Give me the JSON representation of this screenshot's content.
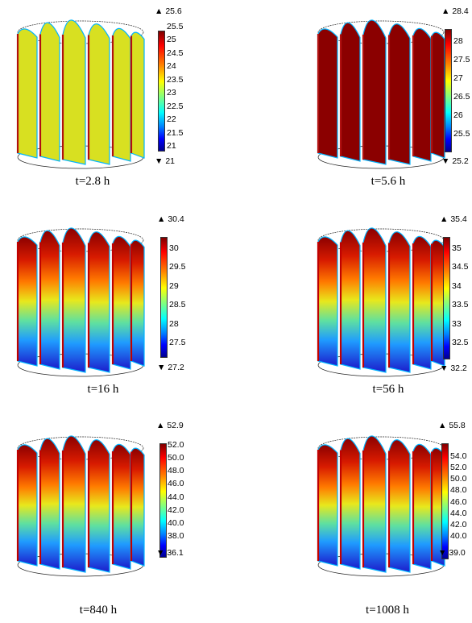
{
  "panels": [
    {
      "caption": "t=2.8 h",
      "max": "25.6",
      "min": "21",
      "ticks": [
        "25.5",
        "25",
        "24.5",
        "24",
        "23.5",
        "23",
        "22.5",
        "22",
        "21.5",
        "21"
      ],
      "fill": "#d8e021"
    },
    {
      "caption": "t=5.6 h",
      "max": "28.4",
      "min": "25.2",
      "ticks": [
        "28",
        "27.5",
        "27",
        "26.5",
        "26",
        "25.5"
      ],
      "fill": "#8b0000"
    },
    {
      "caption": "t=16 h",
      "max": "30.4",
      "min": "27.2",
      "ticks": [
        "30",
        "29.5",
        "29",
        "28.5",
        "28",
        "27.5"
      ],
      "fill": "gradient"
    },
    {
      "caption": "t=56 h",
      "max": "35.4",
      "min": "32.2",
      "ticks": [
        "35",
        "34.5",
        "34",
        "33.5",
        "33",
        "32.5"
      ],
      "fill": "gradient"
    },
    {
      "caption": "t=840 h",
      "max": "52.9",
      "min": "36.1",
      "ticks": [
        "52.0",
        "50.0",
        "48.0",
        "46.0",
        "44.0",
        "42.0",
        "40.0",
        "38.0"
      ],
      "fill": "gradient"
    },
    {
      "caption": "t=1008 h",
      "max": "55.8",
      "min": "39.0",
      "ticks": [
        "54.0",
        "52.0",
        "50.0",
        "48.0",
        "46.0",
        "44.0",
        "42.0",
        "40.0"
      ],
      "fill": "gradient"
    }
  ]
}
